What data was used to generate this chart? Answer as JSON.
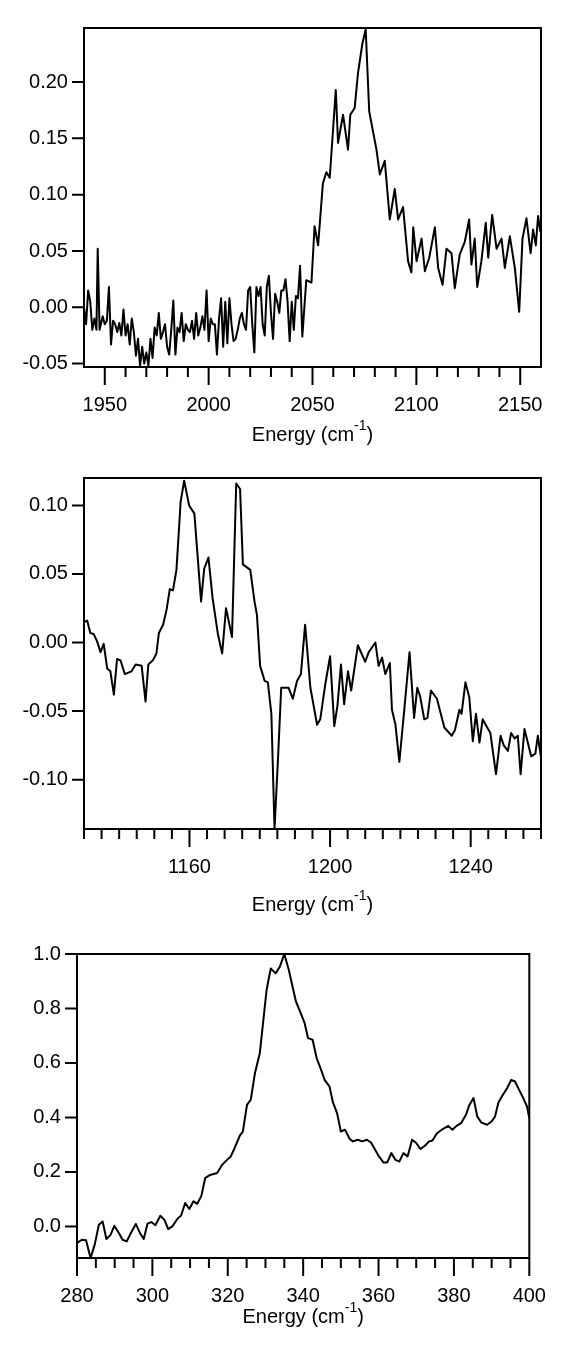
{
  "chart_data": [
    {
      "type": "line",
      "xlabel": "Energy (cm$^{-1}$)",
      "color": "#000000",
      "xlim": [
        1940,
        2160
      ],
      "ylim": [
        -0.053,
        0.248
      ],
      "xticks": [
        1950,
        {
          "value": 1960,
          "label": null
        },
        {
          "value": 1970,
          "label": null
        },
        {
          "value": 1980,
          "label": null
        },
        {
          "value": 1990,
          "label": null
        },
        2000,
        {
          "value": 2010,
          "label": null
        },
        {
          "value": 2020,
          "label": null
        },
        {
          "value": 2030,
          "label": null
        },
        {
          "value": 2040,
          "label": null
        },
        2050,
        {
          "value": 2060,
          "label": null
        },
        {
          "value": 2070,
          "label": null
        },
        {
          "value": 2080,
          "label": null
        },
        {
          "value": 2090,
          "label": null
        },
        2100,
        {
          "value": 2110,
          "label": null
        },
        {
          "value": 2120,
          "label": null
        },
        {
          "value": 2130,
          "label": null
        },
        {
          "value": 2140,
          "label": null
        },
        2150
      ],
      "yticks": [
        -0.05,
        {
          "value": 0,
          "label": "0.00"
        },
        0.05,
        {
          "value": 0.1,
          "label": "0.10"
        },
        0.15,
        {
          "value": 0.2,
          "label": "0.20"
        }
      ],
      "x": [
        1940,
        1941,
        1942,
        1943,
        1944,
        1945,
        1946,
        1946.6,
        1947.5,
        1949,
        1950,
        1951,
        1952,
        1953,
        1954,
        1955,
        1956,
        1957,
        1958,
        1959,
        1960,
        1961,
        1962,
        1963,
        1964,
        1965,
        1966,
        1967,
        1968,
        1969,
        1970,
        1971,
        1972,
        1973,
        1974,
        1975,
        1976,
        1977,
        1978,
        1979,
        1980,
        1981,
        1982,
        1983,
        1984,
        1985,
        1986,
        1987,
        1988,
        1989,
        1990,
        1991,
        1992,
        1993,
        1994,
        1995,
        1996,
        1997,
        1998,
        1999,
        2000,
        2001,
        2002,
        2003,
        2004,
        2005,
        2006,
        2007,
        2008,
        2009,
        2010,
        2011,
        2012,
        2013,
        2014,
        2015,
        2016,
        2017,
        2018,
        2019,
        2020,
        2021,
        2022,
        2023,
        2024,
        2025,
        2026,
        2027,
        2028,
        2029,
        2030,
        2031,
        2032,
        2033,
        2034,
        2035,
        2036,
        2037,
        2038,
        2039,
        2040,
        2041,
        2042,
        2043,
        2044,
        2045.1,
        2047,
        2049.5,
        2051,
        2052.7,
        2055,
        2056.7,
        2058.3,
        2061.2,
        2062.3,
        2064.7,
        2067.1,
        2068.2,
        2070.3,
        2071.9,
        2074,
        2075.6,
        2077.3,
        2080.8,
        2082.4,
        2084.8,
        2087.2,
        2089.6,
        2091.2,
        2093.6,
        2096,
        2097.6,
        2098.5,
        2100.1,
        2102.5,
        2104.1,
        2106.2,
        2108.9,
        2110.5,
        2112.6,
        2114.5,
        2116.9,
        2118.5,
        2120.9,
        2123.3,
        2125.4,
        2126.5,
        2128.1,
        2129.3,
        2131.3,
        2133.4,
        2134.6,
        2136.5,
        2138.6,
        2141,
        2142.6,
        2145,
        2147.4,
        2149.5,
        2151.1,
        2153,
        2155,
        2156.2,
        2157.5,
        2158.6,
        2159.7
      ],
      "values": [
        0,
        -0.015,
        0.015,
        0.005,
        -0.02,
        -0.01,
        -0.02,
        0.052,
        -0.02,
        -0.008,
        -0.015,
        -0.012,
        0.018,
        -0.033,
        -0.012,
        -0.015,
        -0.022,
        -0.014,
        -0.025,
        -0.002,
        -0.025,
        -0.015,
        -0.033,
        -0.01,
        -0.022,
        -0.043,
        -0.028,
        -0.052,
        -0.035,
        -0.05,
        -0.04,
        -0.052,
        -0.028,
        -0.045,
        -0.018,
        -0.025,
        -0.005,
        -0.028,
        -0.022,
        -0.015,
        -0.035,
        -0.042,
        -0.02,
        0.006,
        -0.042,
        -0.018,
        -0.022,
        -0.005,
        -0.03,
        -0.015,
        -0.02,
        -0.022,
        -0.012,
        -0.028,
        -0.005,
        -0.025,
        -0.018,
        -0.008,
        -0.02,
        0.015,
        -0.03,
        -0.01,
        -0.015,
        -0.015,
        -0.042,
        -0.01,
        0.008,
        -0.035,
        0.005,
        -0.032,
        0.008,
        -0.015,
        -0.03,
        -0.028,
        -0.02,
        -0.01,
        -0.005,
        -0.015,
        -0.02,
        0.015,
        0.018,
        -0.015,
        -0.04,
        0.018,
        0.01,
        0.018,
        -0.015,
        -0.025,
        0.018,
        0.028,
        -0.005,
        -0.028,
        0.012,
        0.005,
        -0.005,
        0.015,
        0.015,
        0.025,
        0.005,
        -0.03,
        0.005,
        -0.02,
        0.01,
        0.008,
        0.037,
        -0.026,
        0.024,
        0.022,
        0.072,
        0.055,
        0.11,
        0.12,
        0.115,
        0.193,
        0.146,
        0.171,
        0.14,
        0.171,
        0.177,
        0.208,
        0.234,
        0.247,
        0.174,
        0.14,
        0.118,
        0.13,
        0.078,
        0.105,
        0.078,
        0.089,
        0.041,
        0.031,
        0.071,
        0.041,
        0.061,
        0.032,
        0.044,
        0.071,
        0.035,
        0.02,
        0.052,
        0.048,
        0.017,
        0.047,
        0.058,
        0.078,
        0.038,
        0.061,
        0.018,
        0.041,
        0.075,
        0.044,
        0.082,
        0.052,
        0.061,
        0.035,
        0.063,
        0.035,
        -0.004,
        0.061,
        0.079,
        0.048,
        0.069,
        0.055,
        0.081,
        0.067
      ]
    },
    {
      "type": "line",
      "xlabel": "Energy (cm$^{-1}$)",
      "color": "#000000",
      "xlim": [
        1130,
        1260
      ],
      "ylim": [
        -0.136,
        0.12
      ],
      "xticks": [
        {
          "value": 1130,
          "label": null
        },
        {
          "value": 1135,
          "label": null
        },
        {
          "value": 1140,
          "label": null
        },
        {
          "value": 1145,
          "label": null
        },
        {
          "value": 1150,
          "label": null
        },
        {
          "value": 1155,
          "label": null
        },
        1160,
        {
          "value": 1165,
          "label": null
        },
        {
          "value": 1170,
          "label": null
        },
        {
          "value": 1175,
          "label": null
        },
        {
          "value": 1180,
          "label": null
        },
        {
          "value": 1185,
          "label": null
        },
        {
          "value": 1190,
          "label": null
        },
        {
          "value": 1195,
          "label": null
        },
        1200,
        {
          "value": 1205,
          "label": null
        },
        {
          "value": 1210,
          "label": null
        },
        {
          "value": 1215,
          "label": null
        },
        {
          "value": 1220,
          "label": null
        },
        {
          "value": 1225,
          "label": null
        },
        {
          "value": 1230,
          "label": null
        },
        {
          "value": 1235,
          "label": null
        },
        1240,
        {
          "value": 1245,
          "label": null
        },
        {
          "value": 1250,
          "label": null
        },
        {
          "value": 1255,
          "label": null
        },
        {
          "value": 1260,
          "label": null
        }
      ],
      "yticks": [
        {
          "value": -0.1,
          "label": "-0.10"
        },
        -0.05,
        {
          "value": 0,
          "label": "0.00"
        },
        0.05,
        {
          "value": 0.1,
          "label": "0.10"
        }
      ],
      "x": [
        1130,
        1130.9,
        1131.8,
        1132.8,
        1133.7,
        1134.7,
        1135.6,
        1136.6,
        1137.5,
        1138.5,
        1139.4,
        1140.4,
        1141.6,
        1143.5,
        1144.7,
        1146.4,
        1147.5,
        1148.3,
        1149.6,
        1150.6,
        1151.3,
        1152.5,
        1153.5,
        1154.4,
        1155.3,
        1156.3,
        1157.5,
        1158.5,
        1159.9,
        1161.4,
        1163.3,
        1164.2,
        1165.4,
        1166.6,
        1168.1,
        1169.3,
        1170.4,
        1172.1,
        1173.3,
        1174.4,
        1175.2,
        1177.3,
        1178.5,
        1179.2,
        1180.1,
        1181.4,
        1182.3,
        1183.3,
        1184.2,
        1185.2,
        1186.1,
        1188.2,
        1189.4,
        1190.6,
        1191.7,
        1192.9,
        1194.4,
        1196.3,
        1197.2,
        1198.6,
        1200,
        1201.2,
        1202.1,
        1203.1,
        1204,
        1205.1,
        1206,
        1207.9,
        1210,
        1211,
        1212.9,
        1213.8,
        1214.8,
        1215.7,
        1217,
        1217.6,
        1218.6,
        1219.7,
        1221,
        1222.6,
        1223.9,
        1224.8,
        1225.6,
        1226.8,
        1227.7,
        1228.7,
        1230.4,
        1232.5,
        1234.6,
        1235.5,
        1236.8,
        1237.4,
        1238.5,
        1239.6,
        1240.6,
        1241.5,
        1242.5,
        1243.4,
        1244.7,
        1245.6,
        1247.2,
        1248.5,
        1249.4,
        1250.6,
        1251.5,
        1252.5,
        1253.4,
        1254.2,
        1255.3,
        1257.2,
        1258.4,
        1259.1,
        1260
      ],
      "values": [
        0.015,
        0.016,
        0.007,
        0.006,
        0.001,
        -0.007,
        -0.001,
        -0.019,
        -0.021,
        -0.038,
        -0.012,
        -0.013,
        -0.023,
        -0.021,
        -0.016,
        -0.017,
        -0.043,
        -0.016,
        -0.013,
        -0.008,
        0.007,
        0.013,
        0.024,
        0.039,
        0.038,
        0.053,
        0.103,
        0.118,
        0.1,
        0.094,
        0.03,
        0.054,
        0.062,
        0.032,
        0.006,
        -0.008,
        0.025,
        0.004,
        0.116,
        0.112,
        0.057,
        0.053,
        0.03,
        0.02,
        -0.017,
        -0.028,
        -0.029,
        -0.052,
        -0.136,
        -0.084,
        -0.033,
        -0.033,
        -0.041,
        -0.028,
        -0.023,
        0.013,
        -0.033,
        -0.06,
        -0.056,
        -0.031,
        -0.01,
        -0.061,
        -0.046,
        -0.016,
        -0.045,
        -0.021,
        -0.035,
        -0.002,
        -0.014,
        -0.007,
        0,
        -0.017,
        -0.011,
        -0.023,
        -0.015,
        -0.049,
        -0.06,
        -0.087,
        -0.052,
        -0.007,
        -0.055,
        -0.033,
        -0.039,
        -0.056,
        -0.055,
        -0.035,
        -0.041,
        -0.062,
        -0.068,
        -0.064,
        -0.049,
        -0.052,
        -0.029,
        -0.04,
        -0.072,
        -0.052,
        -0.073,
        -0.056,
        -0.062,
        -0.066,
        -0.096,
        -0.068,
        -0.075,
        -0.079,
        -0.066,
        -0.07,
        -0.068,
        -0.096,
        -0.063,
        -0.083,
        -0.081,
        -0.068,
        -0.084
      ]
    },
    {
      "type": "line",
      "xlabel": "Energy (cm$^{-1}$)",
      "color": "#000000",
      "xlim": [
        280,
        400
      ],
      "ylim": [
        -0.116,
        1
      ],
      "xticks": [
        280,
        {
          "value": 285,
          "label": null
        },
        {
          "value": 290,
          "label": null
        },
        {
          "value": 295,
          "label": null
        },
        300,
        {
          "value": 305,
          "label": null
        },
        {
          "value": 310,
          "label": null
        },
        {
          "value": 315,
          "label": null
        },
        320,
        {
          "value": 325,
          "label": null
        },
        {
          "value": 330,
          "label": null
        },
        {
          "value": 335,
          "label": null
        },
        340,
        {
          "value": 345,
          "label": null
        },
        {
          "value": 350,
          "label": null
        },
        {
          "value": 355,
          "label": null
        },
        360,
        {
          "value": 365,
          "label": null
        },
        {
          "value": 370,
          "label": null
        },
        {
          "value": 375,
          "label": null
        },
        380,
        {
          "value": 385,
          "label": null
        },
        {
          "value": 390,
          "label": null
        },
        {
          "value": 395,
          "label": null
        },
        400
      ],
      "yticks": [
        {
          "value": 0,
          "label": "0.0"
        },
        0.2,
        0.4,
        0.6,
        0.8,
        {
          "value": 1,
          "label": "1.0"
        }
      ],
      "x": [
        280,
        281.3,
        282.4,
        283.6,
        284.7,
        285.8,
        286.8,
        287.8,
        288.9,
        289.9,
        291.1,
        292.1,
        293.2,
        294.3,
        295.6,
        296.7,
        297.7,
        298.7,
        299.7,
        300.8,
        302.1,
        303.2,
        304.2,
        305.3,
        306.8,
        307.6,
        308.7,
        309.8,
        310.9,
        311.9,
        313,
        314,
        315.3,
        317.2,
        318.5,
        320,
        320.8,
        321.8,
        323.2,
        324,
        325.1,
        326.1,
        327.2,
        328.5,
        330.3,
        331.4,
        332.7,
        333.8,
        335,
        336.2,
        337,
        338.1,
        339.2,
        340.4,
        341.3,
        342.5,
        343.6,
        344.6,
        345.7,
        347,
        347.9,
        349,
        350,
        351.1,
        352.4,
        353.2,
        354.5,
        355.7,
        356.9,
        358,
        359.1,
        360.1,
        361.3,
        362.3,
        363.4,
        364.5,
        365.5,
        366.6,
        367.7,
        368.9,
        370,
        371.1,
        372.3,
        373.4,
        374.3,
        375.5,
        376.8,
        378.5,
        379.6,
        380.7,
        381.9,
        383.2,
        384.1,
        385.2,
        386.2,
        387.3,
        388.8,
        390,
        390.9,
        391.8,
        393,
        394.1,
        395.2,
        396.2,
        397.3,
        398.4,
        399.4,
        400
      ],
      "values": [
        -0.061,
        -0.049,
        -0.051,
        -0.116,
        -0.067,
        0.006,
        0.018,
        -0.046,
        -0.031,
        0.002,
        -0.024,
        -0.049,
        -0.055,
        -0.024,
        0.009,
        -0.024,
        -0.046,
        0.01,
        0.016,
        0.004,
        0.039,
        0.024,
        -0.01,
        0,
        0.031,
        0.039,
        0.086,
        0.064,
        0.092,
        0.083,
        0.112,
        0.177,
        0.189,
        0.196,
        0.226,
        0.247,
        0.257,
        0.287,
        0.333,
        0.348,
        0.446,
        0.465,
        0.562,
        0.636,
        0.868,
        0.947,
        0.929,
        0.953,
        1,
        0.941,
        0.892,
        0.825,
        0.788,
        0.746,
        0.691,
        0.685,
        0.617,
        0.581,
        0.538,
        0.513,
        0.455,
        0.416,
        0.348,
        0.355,
        0.32,
        0.312,
        0.318,
        0.312,
        0.318,
        0.308,
        0.281,
        0.257,
        0.235,
        0.235,
        0.269,
        0.244,
        0.238,
        0.269,
        0.257,
        0.318,
        0.306,
        0.284,
        0.296,
        0.312,
        0.315,
        0.342,
        0.355,
        0.369,
        0.355,
        0.369,
        0.379,
        0.41,
        0.446,
        0.471,
        0.403,
        0.381,
        0.373,
        0.385,
        0.403,
        0.455,
        0.483,
        0.507,
        0.538,
        0.532,
        0.501,
        0.471,
        0.44,
        0.397
      ]
    }
  ]
}
